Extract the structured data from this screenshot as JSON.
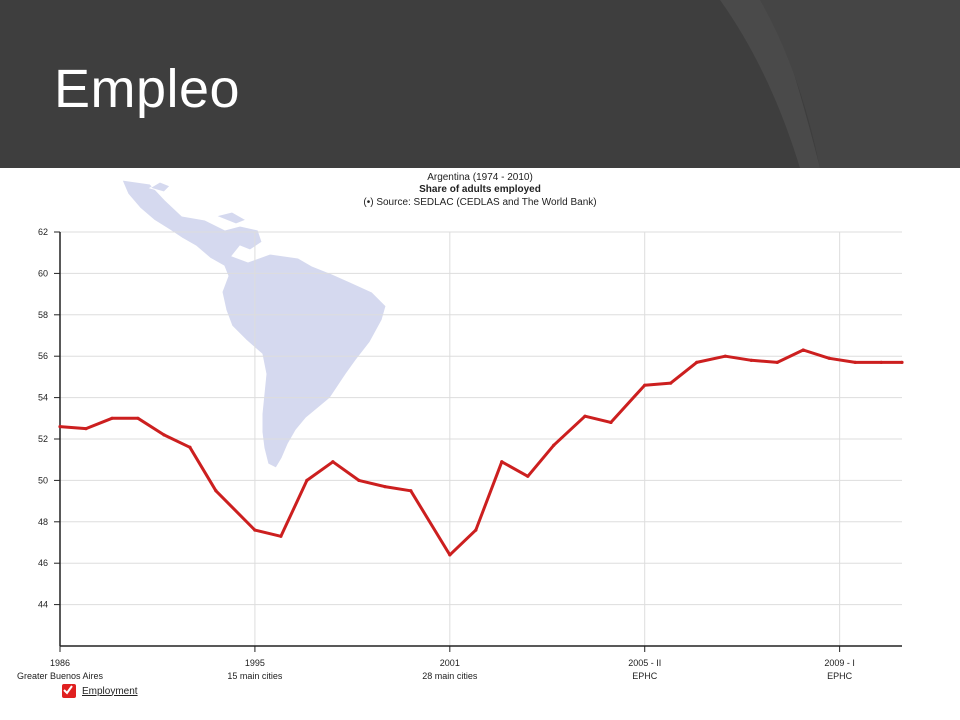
{
  "slide": {
    "title": "Empleo"
  },
  "colors": {
    "header_bg": "#3e3e3e",
    "series": "#cc1f1f",
    "map_fill": "#d5d9ef",
    "grid": "#dddddd"
  },
  "chart_data": {
    "type": "line",
    "title_lines": [
      "Argentina (1974 - 2010)",
      "Share of adults employed",
      "(•) Source: SEDLAC (CEDLAS and The World Bank)"
    ],
    "ylim": [
      42,
      62
    ],
    "yticks": [
      44,
      46,
      48,
      50,
      52,
      54,
      56,
      58,
      60,
      62
    ],
    "x_range": [
      0,
      32.4
    ],
    "grid": true,
    "legend_position": "bottom-left",
    "xticks": [
      {
        "pos": 0,
        "label": "1986",
        "sub": "Greater Buenos Aires"
      },
      {
        "pos": 7.5,
        "label": "1995",
        "sub": "15 main cities"
      },
      {
        "pos": 15,
        "label": "2001",
        "sub": "28 main cities"
      },
      {
        "pos": 22.5,
        "label": "2005 - II",
        "sub": "EPHC"
      },
      {
        "pos": 30,
        "label": "2009 - I",
        "sub": "EPHC"
      }
    ],
    "series": [
      {
        "name": "Employment",
        "points": [
          [
            0,
            52.6
          ],
          [
            1,
            52.5
          ],
          [
            2,
            53.0
          ],
          [
            3,
            53.0
          ],
          [
            4,
            52.2
          ],
          [
            5,
            51.6
          ],
          [
            6,
            49.5
          ],
          [
            7.5,
            47.6
          ],
          [
            8.5,
            47.3
          ],
          [
            9.5,
            50.0
          ],
          [
            10.5,
            50.9
          ],
          [
            11.5,
            50.0
          ],
          [
            12.5,
            49.7
          ],
          [
            13.5,
            49.5
          ],
          [
            15,
            46.4
          ],
          [
            16,
            47.6
          ],
          [
            17,
            50.9
          ],
          [
            18,
            50.2
          ],
          [
            19,
            51.7
          ],
          [
            20.2,
            53.1
          ],
          [
            21.2,
            52.8
          ],
          [
            22.5,
            54.6
          ],
          [
            23.5,
            54.7
          ],
          [
            24.5,
            55.7
          ],
          [
            25.6,
            56.0
          ],
          [
            26.6,
            55.8
          ],
          [
            27.6,
            55.7
          ],
          [
            28.6,
            56.3
          ],
          [
            29.6,
            55.9
          ],
          [
            30.6,
            55.7
          ],
          [
            31.6,
            55.7
          ],
          [
            32.4,
            55.7
          ]
        ]
      }
    ]
  }
}
